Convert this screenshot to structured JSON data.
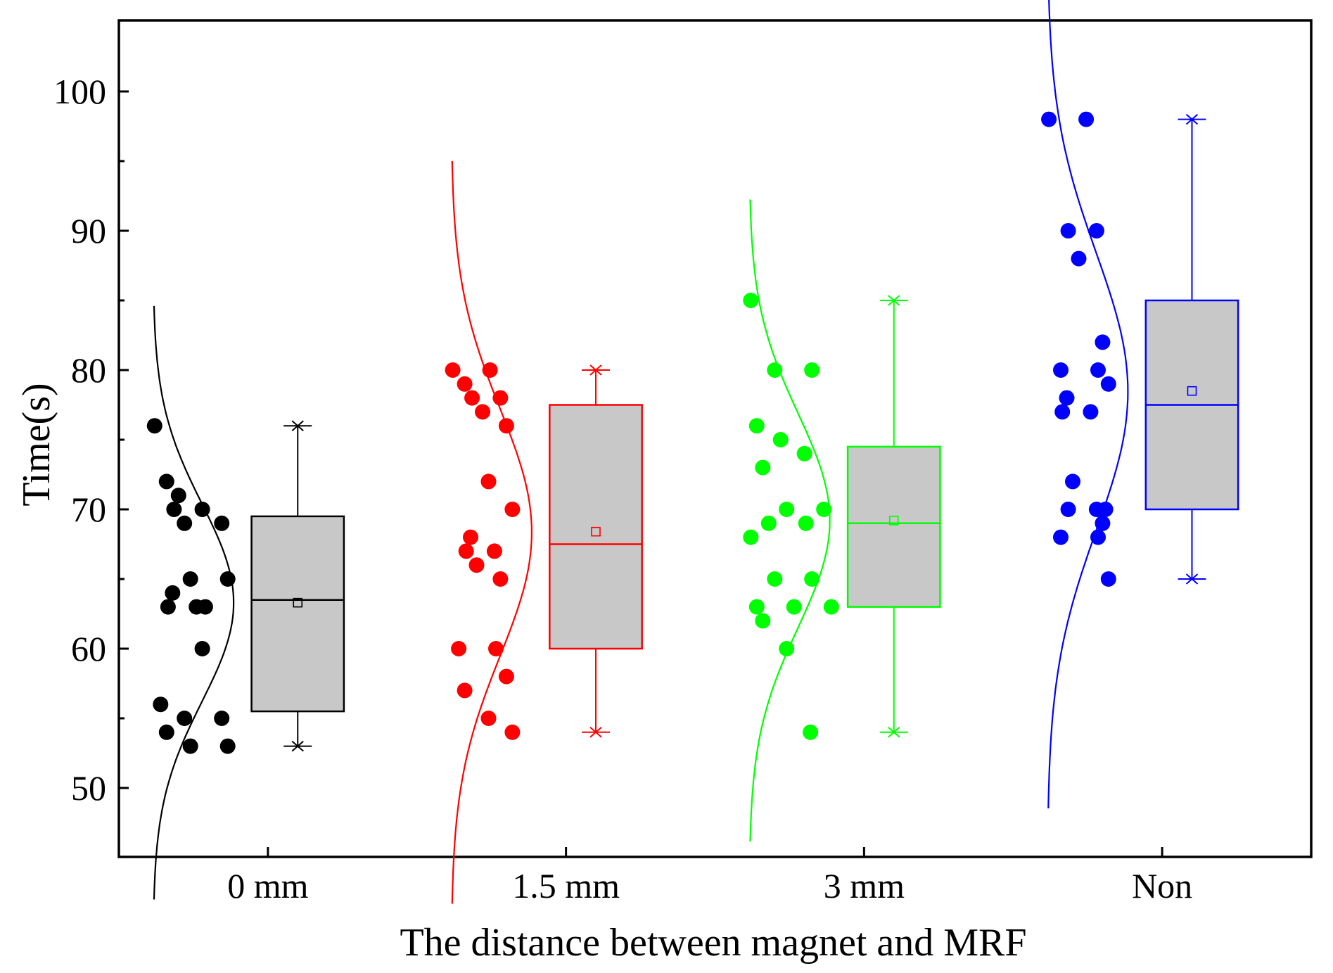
{
  "chart_data": {
    "type": "box",
    "title": "",
    "xlabel": "The distance between magnet and MRF",
    "ylabel": "Time(s)",
    "ylim": [
      45,
      105
    ],
    "yticks": [
      50,
      60,
      70,
      80,
      90,
      100
    ],
    "ytick_labels": [
      "50",
      "60",
      "70",
      "80",
      "90",
      "100"
    ],
    "categories": [
      "0 mm",
      "1.5 mm",
      "3 mm",
      "Non"
    ],
    "series": [
      {
        "name": "0 mm",
        "color": "#000000",
        "points": [
          76,
          71,
          70,
          70,
          69,
          69,
          72,
          65,
          65,
          64,
          63,
          63,
          63,
          60,
          56,
          55,
          55,
          54,
          53,
          53
        ],
        "box": {
          "whisker_low": 55.5,
          "q1": 55.5,
          "median": 63.5,
          "q3": 69.5,
          "whisker_high": 76,
          "min": 53,
          "max": 76,
          "mean": 63.3,
          "whisker_end_low": 53
        }
      },
      {
        "name": "1.5 mm",
        "color": "#ff0000",
        "points": [
          80,
          80,
          78,
          78,
          77,
          76,
          79,
          72,
          70,
          68,
          67,
          67,
          66,
          65,
          60,
          60,
          58,
          57,
          55,
          54
        ],
        "box": {
          "q1": 60,
          "median": 67.5,
          "q3": 77.5,
          "min": 54,
          "max": 80,
          "mean": 68.4,
          "whisker_end_low": 54
        }
      },
      {
        "name": "3 mm",
        "color": "#00ff00",
        "points": [
          85,
          80,
          80,
          76,
          75,
          74,
          73,
          70,
          70,
          69,
          69,
          68,
          65,
          65,
          63,
          63,
          63,
          62,
          60,
          54
        ],
        "box": {
          "q1": 63,
          "median": 69,
          "q3": 74.5,
          "min": 54,
          "max": 85,
          "mean": 69.2,
          "whisker_end_low": 54
        }
      },
      {
        "name": "Non",
        "color": "#0000ff",
        "points": [
          98,
          98,
          90,
          90,
          88,
          82,
          80,
          80,
          79,
          78,
          77,
          77,
          72,
          70,
          70,
          70,
          69,
          68,
          68,
          65
        ],
        "box": {
          "q1": 70,
          "median": 77.5,
          "q3": 85,
          "min": 65,
          "max": 98,
          "mean": 78.5,
          "whisker_end_low": 65
        }
      }
    ]
  }
}
